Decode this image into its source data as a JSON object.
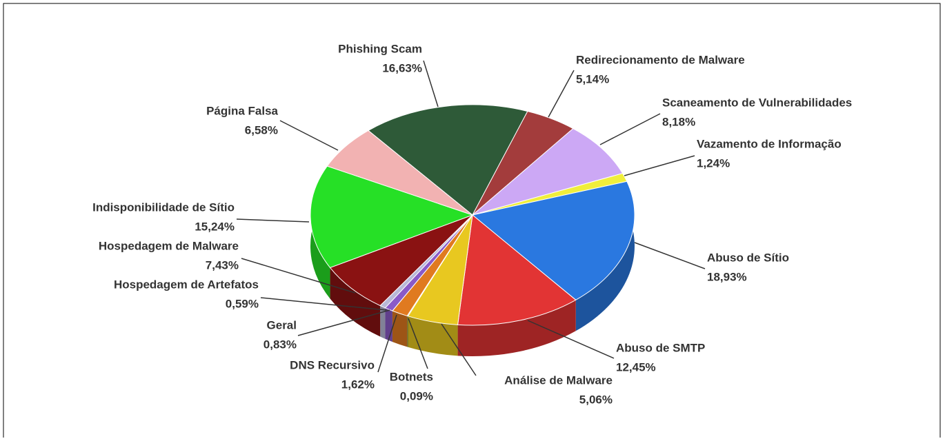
{
  "chart_data": {
    "type": "pie",
    "categories": [
      "Phishing Scam",
      "Redirecionamento de Malware",
      "Scaneamento de Vulnerabilidades",
      "Vazamento de Informação",
      "Abuso de Sítio",
      "Abuso de SMTP",
      "Análise de Malware",
      "Botnets",
      "DNS Recursivo",
      "Geral",
      "Hospedagem de Artefatos",
      "Hospedagem de Malware",
      "Indisponibilidade de Sítio",
      "Página Falsa"
    ],
    "values": [
      16.63,
      5.14,
      8.18,
      1.24,
      18.93,
      12.45,
      5.06,
      0.09,
      1.62,
      0.83,
      0.59,
      7.43,
      15.24,
      6.58
    ],
    "value_labels": [
      "16,63%",
      "5,14%",
      "8,18%",
      "1,24%",
      "18,93%",
      "12,45%",
      "5,06%",
      "0,09%",
      "1,62%",
      "0,83%",
      "0,59%",
      "7,43%",
      "15,24%",
      "6,58%"
    ],
    "colors": [
      "#2e5a38",
      "#a33c3c",
      "#cca8f5",
      "#f0ee3c",
      "#2a78e0",
      "#e23434",
      "#e8c820",
      "#7a8a30",
      "#e07a20",
      "#8a5ac8",
      "#b8b8d8",
      "#8a1212",
      "#26e026",
      "#f2b2b2"
    ]
  }
}
